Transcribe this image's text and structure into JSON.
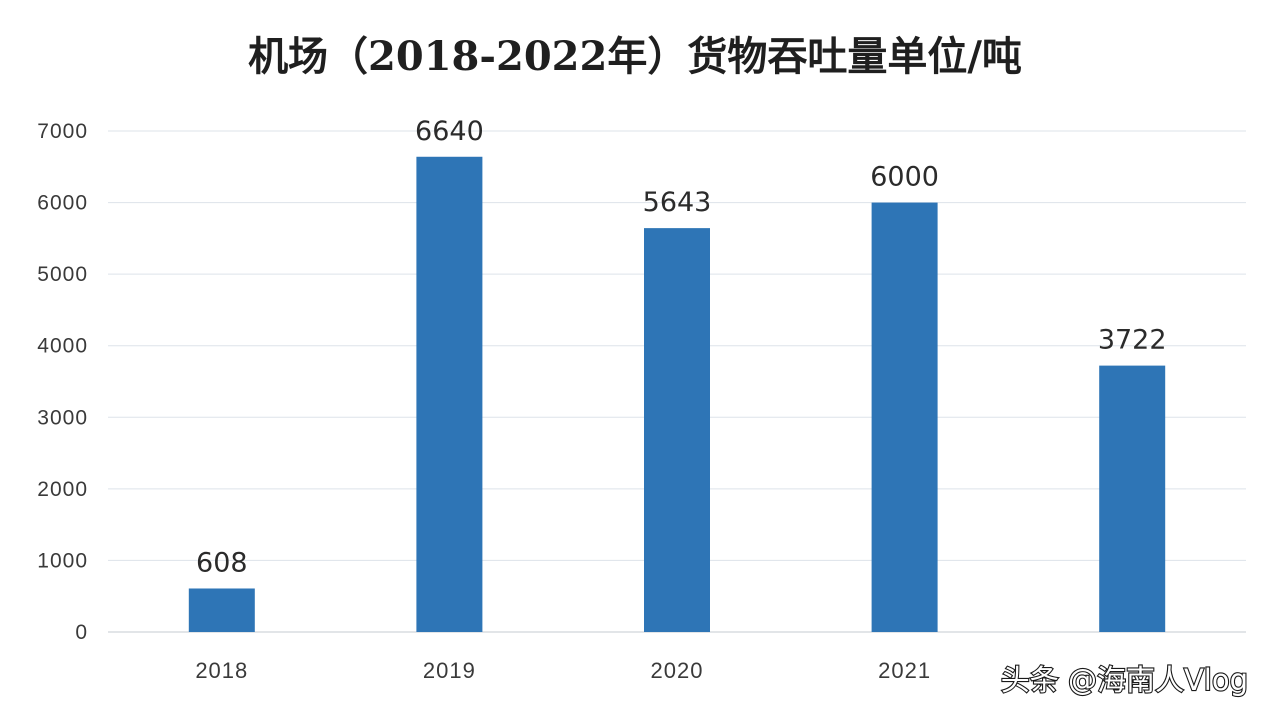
{
  "chart_data": {
    "type": "bar",
    "title": "机场（2018-2022年）货物吞吐量单位/吨",
    "xlabel": "",
    "ylabel": "",
    "categories": [
      "2018",
      "2019",
      "2020",
      "2021",
      ""
    ],
    "values": [
      608,
      6640,
      5643,
      6000,
      3722
    ],
    "data_labels": [
      "608",
      "6640",
      "5643",
      "6000",
      "3722"
    ],
    "y_ticks": [
      0,
      1000,
      2000,
      3000,
      4000,
      5000,
      6000,
      7000
    ],
    "y_tick_labels": [
      "0",
      "1000",
      "2000",
      "3000",
      "4000",
      "5000",
      "6000",
      "7000"
    ],
    "ylim": [
      0,
      7000
    ],
    "grid": true,
    "legend": "none",
    "bar_color": "#2e75b6"
  },
  "watermark": {
    "text": "头条 @海南人Vlog"
  }
}
